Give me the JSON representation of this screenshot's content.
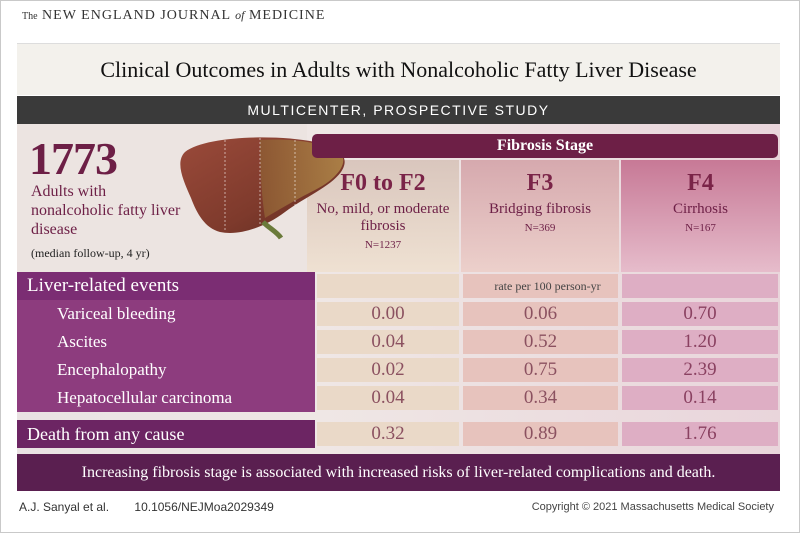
{
  "journal": {
    "the": "The",
    "name_part1": "NEW ENGLAND JOURNAL",
    "of": "of",
    "name_part2": "MEDICINE"
  },
  "title": "Clinical Outcomes in Adults with Nonalcoholic Fatty Liver Disease",
  "study_type": "MULTICENTER, PROSPECTIVE STUDY",
  "cohort": {
    "count": "1773",
    "description": "Adults with nonalcoholic fatty liver disease",
    "followup": "(median follow-up, 4 yr)"
  },
  "fibrosis_header": "Fibrosis Stage",
  "columns": [
    {
      "stage": "F0 to F2",
      "desc": "No, mild, or moderate fibrosis",
      "n": "N=1237"
    },
    {
      "stage": "F3",
      "desc": "Bridging fibrosis",
      "n": "N=369"
    },
    {
      "stage": "F4",
      "desc": "Cirrhosis",
      "n": "N=167"
    }
  ],
  "liver_events_label": "Liver-related events",
  "rate_unit": "rate per 100 person-yr",
  "rows": [
    {
      "label": "Variceal bleeding",
      "values": [
        "0.00",
        "0.06",
        "0.70"
      ]
    },
    {
      "label": "Ascites",
      "values": [
        "0.04",
        "0.52",
        "1.20"
      ]
    },
    {
      "label": "Encephalopathy",
      "values": [
        "0.02",
        "0.75",
        "2.39"
      ]
    },
    {
      "label": "Hepatocellular carcinoma",
      "values": [
        "0.04",
        "0.34",
        "0.14"
      ]
    }
  ],
  "death": {
    "label": "Death from any cause",
    "values": [
      "0.32",
      "0.89",
      "1.76"
    ]
  },
  "conclusion": "Increasing fibrosis stage is associated with increased risks of liver-related complications and death.",
  "footer": {
    "authors": "A.J. Sanyal et al.",
    "doi": "10.1056/NEJMoa2029349",
    "copyright": "Copyright © 2021 Massachusetts Medical Society"
  },
  "colors": {
    "accent": "#6d1f46",
    "row_label": "#8d3c7e",
    "conclusion_bg": "#5a1f50"
  }
}
